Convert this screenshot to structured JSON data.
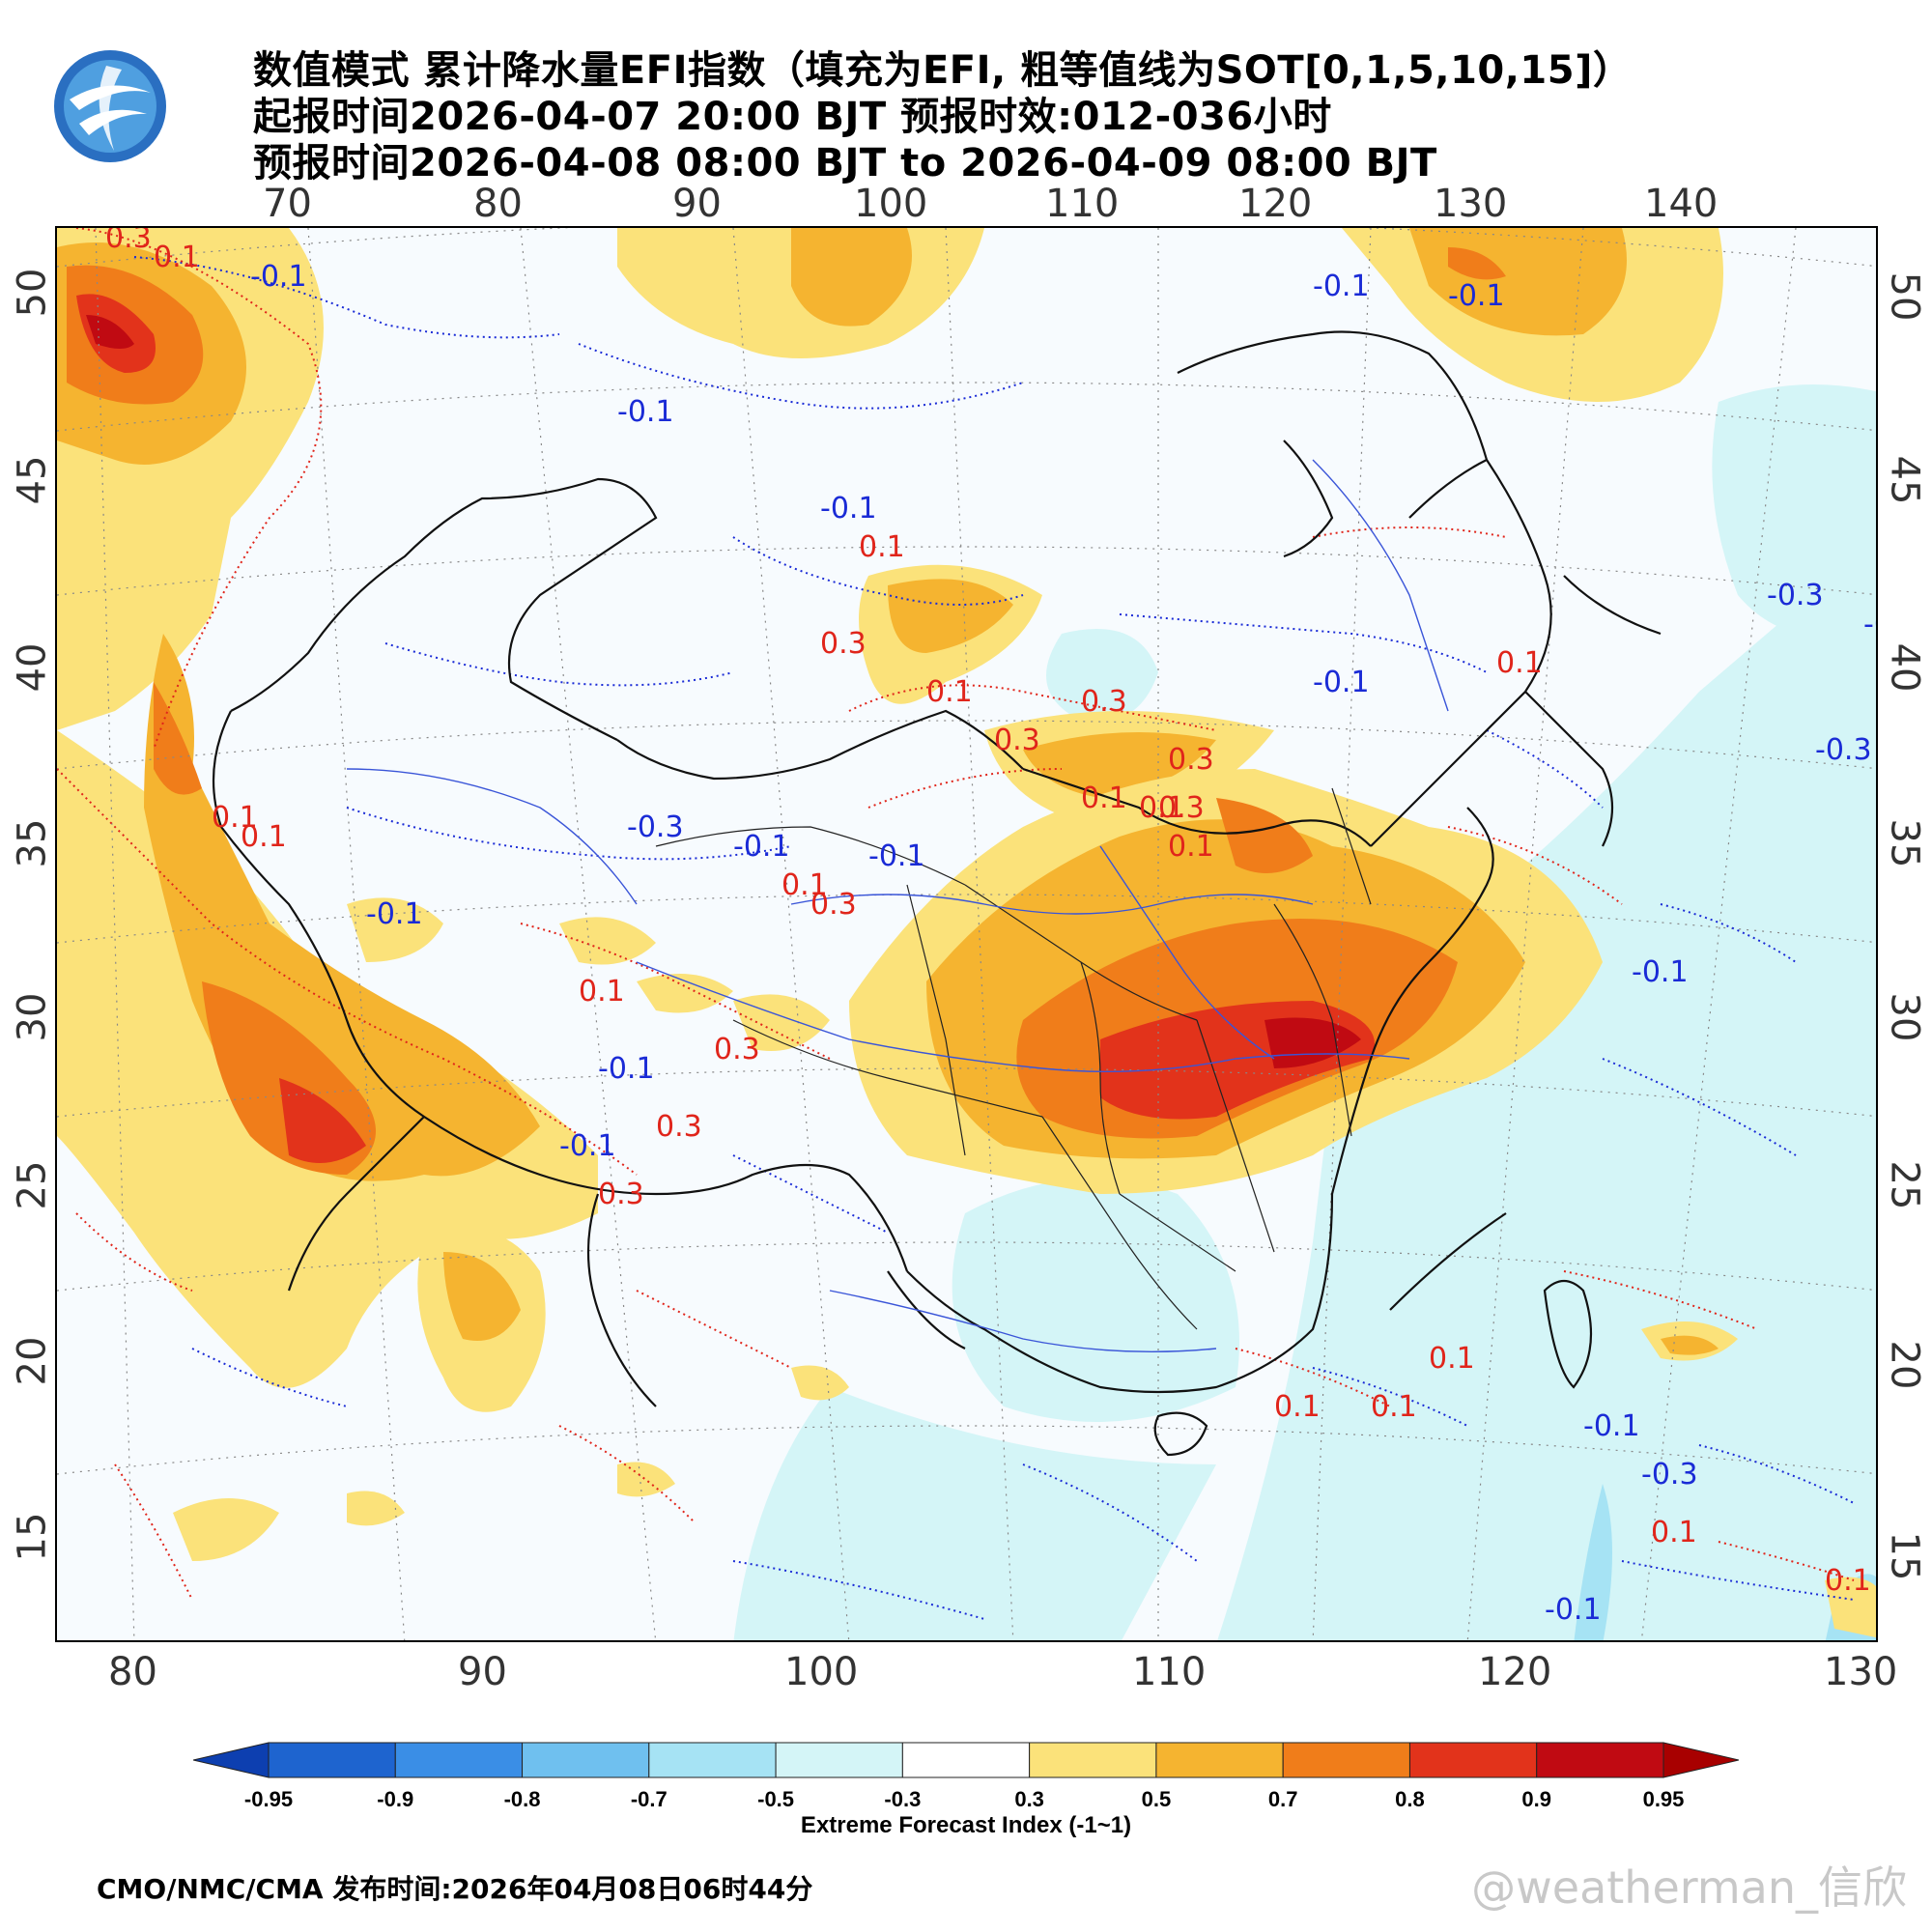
{
  "title": {
    "line1": "数值模式 累计降水量EFI指数（填充为EFI, 粗等值线为SOT[0,1,5,10,15]）",
    "line2": "起报时间2026-04-07 20:00 BJT 预报时效:012-036小时",
    "line3": "预报时间2026-04-08 08:00 BJT to 2026-04-09 08:00 BJT"
  },
  "logo": {
    "icon": "cma-logo-icon"
  },
  "map": {
    "top_lon_ticks": [
      "70",
      "80",
      "90",
      "100",
      "110",
      "120",
      "130",
      "140"
    ],
    "bottom_lon_ticks": [
      "80",
      "90",
      "100",
      "110",
      "120",
      "130"
    ],
    "left_lat_ticks": [
      "50",
      "45",
      "40",
      "35",
      "30",
      "25",
      "20",
      "15"
    ],
    "right_lat_ticks": [
      "50",
      "45",
      "40",
      "35",
      "30",
      "25",
      "20",
      "15"
    ],
    "contour_labels": [
      {
        "text": "0.3",
        "color": "red"
      },
      {
        "text": "0.1",
        "color": "red"
      },
      {
        "text": "-0.1",
        "color": "blue"
      },
      {
        "text": "-0.1",
        "color": "blue"
      },
      {
        "text": "-0.1",
        "color": "blue"
      },
      {
        "text": "0.1",
        "color": "red"
      },
      {
        "text": "0.3",
        "color": "red"
      },
      {
        "text": "0.1",
        "color": "red"
      },
      {
        "text": "0.3",
        "color": "red"
      },
      {
        "text": "-0.1",
        "color": "blue"
      },
      {
        "text": "0.1",
        "color": "red"
      },
      {
        "text": "0.3",
        "color": "red"
      },
      {
        "text": "-0.1",
        "color": "blue"
      },
      {
        "text": "-0.1",
        "color": "blue"
      },
      {
        "text": "-0.1",
        "color": "blue"
      },
      {
        "text": "0.1",
        "color": "red"
      },
      {
        "text": "0.3",
        "color": "red"
      },
      {
        "text": "0.1",
        "color": "red"
      },
      {
        "text": "0.3",
        "color": "red"
      },
      {
        "text": "0.1",
        "color": "red"
      },
      {
        "text": "0.3",
        "color": "red"
      },
      {
        "text": "0.3",
        "color": "red"
      },
      {
        "text": "-0.1",
        "color": "blue"
      },
      {
        "text": "0.3",
        "color": "red"
      },
      {
        "text": "0.1",
        "color": "red"
      },
      {
        "text": "-0.1",
        "color": "blue"
      },
      {
        "text": "0.1",
        "color": "red"
      },
      {
        "text": "0.1",
        "color": "red"
      },
      {
        "text": "-0.1",
        "color": "blue"
      },
      {
        "text": "-0.3",
        "color": "blue"
      },
      {
        "text": "-0.1",
        "color": "blue"
      },
      {
        "text": "-0.3",
        "color": "blue"
      },
      {
        "text": "-0.3",
        "color": "blue"
      },
      {
        "text": "-0.3",
        "color": "blue"
      },
      {
        "text": "0.1",
        "color": "red"
      },
      {
        "text": "-0.1",
        "color": "blue"
      },
      {
        "text": "0.1",
        "color": "red"
      },
      {
        "text": "0.1",
        "color": "red"
      },
      {
        "text": "0.1",
        "color": "red"
      },
      {
        "text": "0.3",
        "color": "red"
      },
      {
        "text": "-0.1",
        "color": "blue"
      },
      {
        "text": "-0.3",
        "color": "blue"
      },
      {
        "text": "0.1",
        "color": "red"
      },
      {
        "text": "0.1",
        "color": "red"
      },
      {
        "text": "-0.1",
        "color": "blue"
      }
    ]
  },
  "legend": {
    "labels": [
      "-0.95",
      "-0.9",
      "-0.8",
      "-0.7",
      "-0.5",
      "-0.3",
      "0.3",
      "0.5",
      "0.7",
      "0.8",
      "0.9",
      "0.95"
    ],
    "colors": [
      "#0d3fb0",
      "#1e64cf",
      "#3a8ee6",
      "#6fc0ef",
      "#a6e3f4",
      "#d4f5f7",
      "#ffffff",
      "#fbe27a",
      "#f5b430",
      "#f07d1a",
      "#e2331b",
      "#c00a12",
      "#a80000"
    ],
    "title": "Extreme Forecast Index (-1~1)"
  },
  "footer": {
    "source": "CMO/NMC/CMA 发布时间:2026年04月08日06时44分",
    "watermark": "@weatherman_信欣"
  }
}
